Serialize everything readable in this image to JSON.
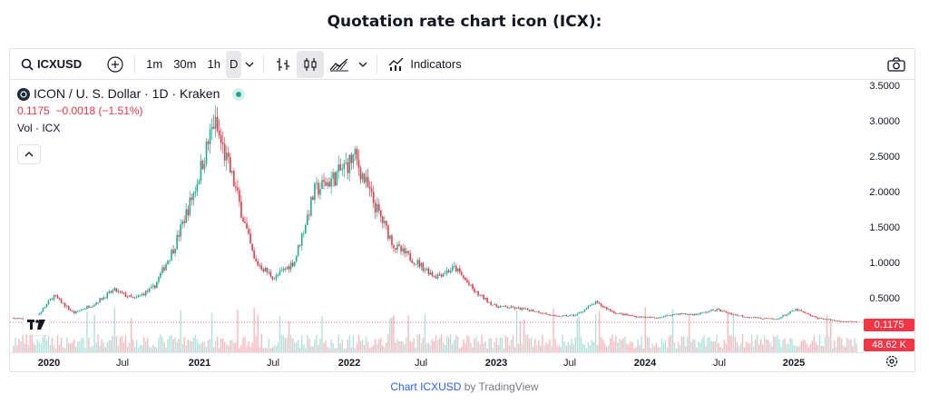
{
  "page": {
    "title": "Quotation rate chart icon (ICX):"
  },
  "toolbar": {
    "symbol": "ICXUSD",
    "intervals": [
      "1m",
      "30m",
      "1h",
      "D"
    ],
    "active_interval": "D",
    "indicators_label": "Indicators",
    "icons": [
      "search-icon",
      "plus-circle-icon",
      "chevron-down-icon",
      "bar-style-icon",
      "candles-icon",
      "area-style-icon",
      "indicators-icon",
      "camera-icon"
    ]
  },
  "legend": {
    "title": "ICON / U. S. Dollar · 1D · Kraken",
    "price_change": "0.1175  −0.0018 (−1.51%)",
    "volume_label": "Vol · ICX"
  },
  "price_axis": {
    "ticks": [
      "3.5000",
      "3.0000",
      "2.5000",
      "2.0000",
      "1.5000",
      "1.0000",
      "0.5000"
    ],
    "last_price": "0.1175",
    "last_volume": "48.62 K"
  },
  "time_axis": {
    "ticks": [
      {
        "label": "2020",
        "bold": true
      },
      {
        "label": "Jul",
        "bold": false
      },
      {
        "label": "2021",
        "bold": true
      },
      {
        "label": "Jul",
        "bold": false
      },
      {
        "label": "2022",
        "bold": true
      },
      {
        "label": "Jul",
        "bold": false
      },
      {
        "label": "2023",
        "bold": true
      },
      {
        "label": "Jul",
        "bold": false
      },
      {
        "label": "2024",
        "bold": true
      },
      {
        "label": "Jul",
        "bold": false
      },
      {
        "label": "2025",
        "bold": true
      }
    ]
  },
  "footer": {
    "link_text": "Chart ICXUSD",
    "suffix": " by TradingView"
  },
  "colors": {
    "up": "#22ab94",
    "down": "#f23645",
    "last_price": "#f23645",
    "accent": "#2962ff"
  },
  "chart_data": {
    "type": "line",
    "title": "ICON / U. S. Dollar · 1D · Kraken",
    "y_scale": "linear",
    "ylim": [
      0,
      3.6
    ],
    "x": [
      "2019-11",
      "2020-01",
      "2020-03",
      "2020-05",
      "2020-07",
      "2020-09",
      "2020-11",
      "2021-01",
      "2021-02",
      "2021-03",
      "2021-04",
      "2021-05",
      "2021-06",
      "2021-07",
      "2021-08",
      "2021-09",
      "2021-10",
      "2021-11",
      "2021-12",
      "2022-01",
      "2022-02",
      "2022-03",
      "2022-04",
      "2022-05",
      "2022-06",
      "2022-08",
      "2022-10",
      "2022-12",
      "2023-02",
      "2023-04",
      "2023-06",
      "2023-08",
      "2023-10",
      "2023-12",
      "2024-02",
      "2024-04",
      "2024-06",
      "2024-08",
      "2024-10",
      "2024-12",
      "2025-02",
      "2025-04",
      "2025-06"
    ],
    "series": [
      {
        "values": [
          0.18,
          0.14,
          0.5,
          0.25,
          0.38,
          0.58,
          0.45,
          0.62,
          1.2,
          2.0,
          3.0,
          2.1,
          1.0,
          0.75,
          1.0,
          2.0,
          2.2,
          2.5,
          1.8,
          1.2,
          1.0,
          0.78,
          0.9,
          0.55,
          0.35,
          0.32,
          0.28,
          0.2,
          0.22,
          0.4,
          0.25,
          0.2,
          0.18,
          0.24,
          0.23,
          0.3,
          0.22,
          0.18,
          0.16,
          0.3,
          0.18,
          0.14,
          0.12
        ]
      }
    ]
  }
}
